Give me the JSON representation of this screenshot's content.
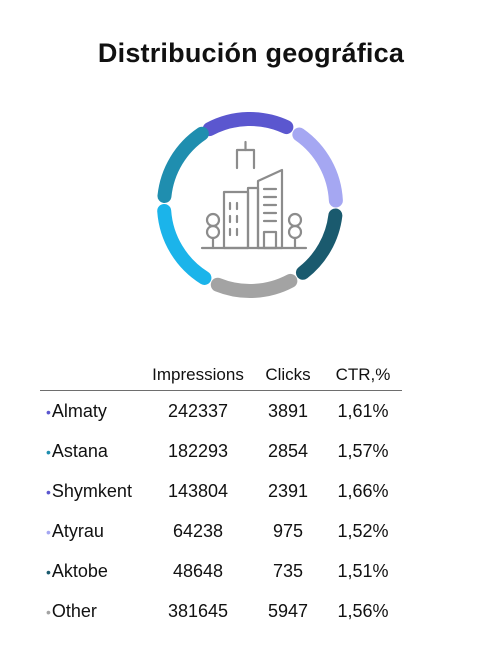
{
  "title": "Distribución geográfica",
  "icon": "city-buildings-icon",
  "ring_colors": [
    "#5b57cf",
    "#a5a7f2",
    "#1a5a6e",
    "#a3a3a3",
    "#1bb4ea",
    "#1f8eaf"
  ],
  "table": {
    "headers": [
      "",
      "Impressions",
      "Clicks",
      "CTR,%"
    ],
    "rows": [
      {
        "city": "Almaty",
        "impressions": "242337",
        "clicks": "3891",
        "ctr": "1,61%",
        "dot_color": "#5b57cf"
      },
      {
        "city": "Astana",
        "impressions": "182293",
        "clicks": "2854",
        "ctr": "1,57%",
        "dot_color": "#1f8eaf"
      },
      {
        "city": "Shymkent",
        "impressions": "143804",
        "clicks": "2391",
        "ctr": "1,66%",
        "dot_color": "#5b57cf"
      },
      {
        "city": "Atyrau",
        "impressions": "64238",
        "clicks": "975",
        "ctr": "1,52%",
        "dot_color": "#a5a7f2"
      },
      {
        "city": "Aktobe",
        "impressions": "48648",
        "clicks": "735",
        "ctr": "1,51%",
        "dot_color": "#1a5a6e"
      },
      {
        "city": "Other",
        "impressions": "381645",
        "clicks": "5947",
        "ctr": "1,56%",
        "dot_color": "#a3a3a3"
      }
    ]
  }
}
